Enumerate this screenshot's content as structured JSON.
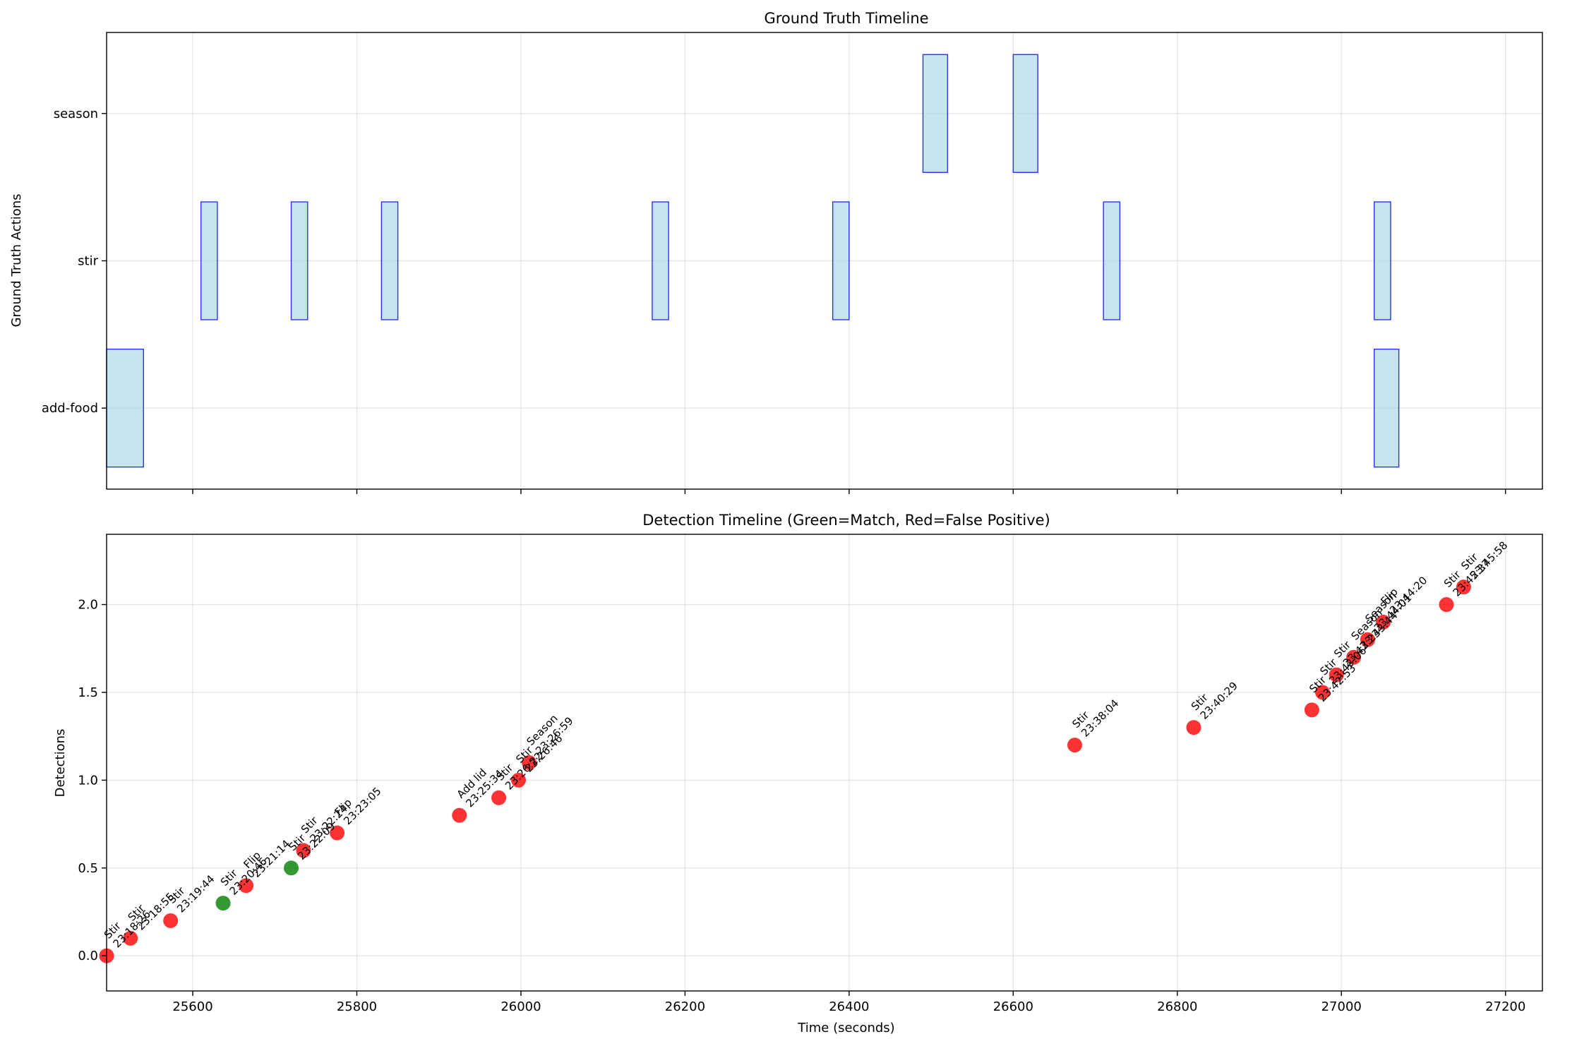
{
  "chart_data": [
    {
      "type": "timeline",
      "title": "Ground Truth Timeline",
      "xlabel": "",
      "ylabel": "Ground Truth Actions",
      "xlim": [
        25495,
        27245
      ],
      "ylim": [
        -0.55,
        2.55
      ],
      "grid": true,
      "categories": [
        "add-food",
        "stir",
        "season"
      ],
      "bar_color": "#add8e6",
      "edge_color": "#0000ff",
      "segments": [
        {
          "action": "add-food",
          "start": 25495,
          "end": 25540
        },
        {
          "action": "add-food",
          "start": 27040,
          "end": 27070
        },
        {
          "action": "stir",
          "start": 25610,
          "end": 25630
        },
        {
          "action": "stir",
          "start": 25720,
          "end": 25740
        },
        {
          "action": "stir",
          "start": 25830,
          "end": 25850
        },
        {
          "action": "stir",
          "start": 26160,
          "end": 26180
        },
        {
          "action": "stir",
          "start": 26380,
          "end": 26400
        },
        {
          "action": "stir",
          "start": 26710,
          "end": 26730
        },
        {
          "action": "stir",
          "start": 27040,
          "end": 27060
        },
        {
          "action": "season",
          "start": 26490,
          "end": 26520
        },
        {
          "action": "season",
          "start": 26600,
          "end": 26630
        }
      ]
    },
    {
      "type": "scatter",
      "title": "Detection Timeline (Green=Match, Red=False Positive)",
      "xlabel": "Time (seconds)",
      "ylabel": "Detections",
      "xlim": [
        25495,
        27245
      ],
      "ylim": [
        -0.2,
        2.4
      ],
      "xticks": [
        25600,
        25800,
        26000,
        26200,
        26400,
        26600,
        26800,
        27000,
        27200
      ],
      "yticks": [
        0.0,
        0.5,
        1.0,
        1.5,
        2.0
      ],
      "ytick_labels": [
        "0.0",
        "0.5",
        "1.0",
        "1.5",
        "2.0"
      ],
      "grid": true,
      "match_color": "#008000",
      "false_color": "#ff0000",
      "points": [
        {
          "x": 25495,
          "y": 0.0,
          "match": false,
          "action": "Stir",
          "time": "23:18:26"
        },
        {
          "x": 25524,
          "y": 0.1,
          "match": false,
          "action": "Stir",
          "time": "23:18:55"
        },
        {
          "x": 25573,
          "y": 0.2,
          "match": false,
          "action": "Stir",
          "time": "23:19:44"
        },
        {
          "x": 25637,
          "y": 0.3,
          "match": true,
          "action": "Stir",
          "time": "23:20:46"
        },
        {
          "x": 25665,
          "y": 0.4,
          "match": false,
          "action": "Flip",
          "time": "23:21:14"
        },
        {
          "x": 25720,
          "y": 0.5,
          "match": true,
          "action": "Stir",
          "time": "23:22:09"
        },
        {
          "x": 25735,
          "y": 0.6,
          "match": false,
          "action": "Stir",
          "time": "23:22:24"
        },
        {
          "x": 25776,
          "y": 0.7,
          "match": false,
          "action": "Flip",
          "time": "23:23:05"
        },
        {
          "x": 25925,
          "y": 0.8,
          "match": false,
          "action": "Add lid",
          "time": "23:25:34"
        },
        {
          "x": 25973,
          "y": 0.9,
          "match": false,
          "action": "Stir",
          "time": "23:26:22"
        },
        {
          "x": 25997,
          "y": 1.0,
          "match": false,
          "action": "Stir",
          "time": "23:26:46"
        },
        {
          "x": 26010,
          "y": 1.1,
          "match": false,
          "action": "Season",
          "time": "23:26:59"
        },
        {
          "x": 26675,
          "y": 1.2,
          "match": false,
          "action": "Stir",
          "time": "23:38:04"
        },
        {
          "x": 26820,
          "y": 1.3,
          "match": false,
          "action": "Stir",
          "time": "23:40:29"
        },
        {
          "x": 26964,
          "y": 1.4,
          "match": false,
          "action": "Stir",
          "time": "23:42:53"
        },
        {
          "x": 26977,
          "y": 1.5,
          "match": false,
          "action": "Stir",
          "time": "23:43:06"
        },
        {
          "x": 26994,
          "y": 1.6,
          "match": false,
          "action": "Stir",
          "time": "23:43:23"
        },
        {
          "x": 27015,
          "y": 1.7,
          "match": false,
          "action": "Season",
          "time": "23:43:44"
        },
        {
          "x": 27032,
          "y": 1.8,
          "match": false,
          "action": "Season",
          "time": "23:44:01"
        },
        {
          "x": 27051,
          "y": 1.9,
          "match": false,
          "action": "Flip",
          "time": "23:44:20"
        },
        {
          "x": 27128,
          "y": 2.0,
          "match": false,
          "action": "Stir",
          "time": "23:45:37"
        },
        {
          "x": 27149,
          "y": 2.1,
          "match": false,
          "action": "Stir",
          "time": "23:45:58"
        }
      ]
    }
  ]
}
